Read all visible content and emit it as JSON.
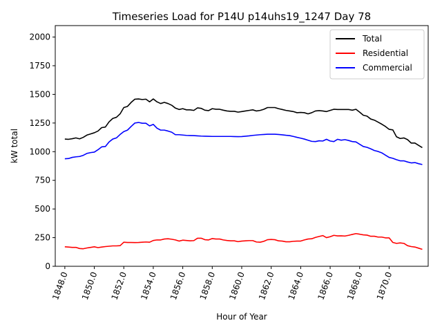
{
  "chart_data": {
    "type": "line",
    "title": "Timeseries Load for P14U p14uhs19_1247  Day 78",
    "xlabel": "Hour of Year",
    "ylabel": "kW total",
    "xlim": [
      1847.35,
      1872.65
    ],
    "ylim": [
      0,
      2100
    ],
    "xticks": [
      1848,
      1850,
      1852,
      1854,
      1856,
      1858,
      1860,
      1862,
      1864,
      1866,
      1868,
      1870
    ],
    "xtick_labels": [
      "1848.0",
      "1850.0",
      "1852.0",
      "1854.0",
      "1856.0",
      "1858.0",
      "1860.0",
      "1862.0",
      "1864.0",
      "1866.0",
      "1868.0",
      "1870.0"
    ],
    "yticks": [
      0,
      250,
      500,
      750,
      1000,
      1250,
      1500,
      1750,
      2000
    ],
    "ytick_labels": [
      "0",
      "250",
      "500",
      "750",
      "1000",
      "1250",
      "1500",
      "1750",
      "2000"
    ],
    "legend_position": "top-right",
    "x_start": 1848,
    "x_step": 0.25,
    "series": [
      {
        "name": "Total",
        "color": "#000000",
        "values": [
          1110,
          1108,
          1113,
          1120,
          1112,
          1125,
          1145,
          1155,
          1165,
          1180,
          1210,
          1215,
          1260,
          1290,
          1300,
          1330,
          1385,
          1395,
          1430,
          1458,
          1460,
          1455,
          1458,
          1435,
          1460,
          1435,
          1420,
          1430,
          1420,
          1405,
          1380,
          1368,
          1375,
          1365,
          1365,
          1360,
          1382,
          1378,
          1362,
          1358,
          1375,
          1370,
          1370,
          1362,
          1355,
          1352,
          1352,
          1345,
          1350,
          1355,
          1360,
          1365,
          1355,
          1360,
          1370,
          1385,
          1385,
          1385,
          1375,
          1368,
          1360,
          1355,
          1350,
          1340,
          1342,
          1340,
          1330,
          1340,
          1355,
          1358,
          1355,
          1350,
          1360,
          1370,
          1368,
          1368,
          1368,
          1368,
          1362,
          1370,
          1345,
          1318,
          1310,
          1285,
          1275,
          1258,
          1240,
          1220,
          1195,
          1190,
          1130,
          1115,
          1120,
          1105,
          1075,
          1075,
          1055,
          1035
        ]
      },
      {
        "name": "Residential",
        "color": "#ff0000",
        "values": [
          170,
          168,
          165,
          165,
          155,
          153,
          160,
          165,
          170,
          163,
          168,
          172,
          175,
          178,
          178,
          180,
          210,
          208,
          208,
          207,
          208,
          210,
          212,
          210,
          225,
          230,
          230,
          238,
          240,
          236,
          230,
          220,
          228,
          225,
          222,
          224,
          245,
          245,
          232,
          230,
          242,
          238,
          238,
          230,
          225,
          222,
          222,
          215,
          220,
          222,
          224,
          224,
          212,
          210,
          218,
          232,
          234,
          232,
          222,
          220,
          214,
          214,
          218,
          220,
          220,
          230,
          238,
          240,
          252,
          260,
          268,
          250,
          258,
          270,
          265,
          266,
          264,
          270,
          278,
          285,
          280,
          274,
          272,
          262,
          262,
          255,
          255,
          248,
          248,
          208,
          200,
          204,
          200,
          180,
          172,
          168,
          158,
          148
        ]
      },
      {
        "name": "Commercial",
        "color": "#0000ff",
        "values": [
          938,
          940,
          950,
          955,
          958,
          968,
          985,
          992,
          996,
          1017,
          1042,
          1045,
          1085,
          1110,
          1120,
          1150,
          1175,
          1188,
          1220,
          1250,
          1255,
          1248,
          1248,
          1225,
          1238,
          1205,
          1188,
          1188,
          1180,
          1170,
          1148,
          1148,
          1145,
          1142,
          1141,
          1140,
          1138,
          1136,
          1135,
          1134,
          1133,
          1133,
          1133,
          1133,
          1133,
          1133,
          1132,
          1131,
          1132,
          1135,
          1138,
          1142,
          1145,
          1148,
          1150,
          1152,
          1152,
          1152,
          1150,
          1147,
          1143,
          1140,
          1133,
          1125,
          1118,
          1110,
          1100,
          1090,
          1088,
          1095,
          1093,
          1108,
          1093,
          1088,
          1108,
          1100,
          1105,
          1098,
          1088,
          1085,
          1065,
          1045,
          1038,
          1025,
          1010,
          1002,
          990,
          970,
          950,
          942,
          930,
          920,
          920,
          910,
          902,
          905,
          895,
          888
        ]
      }
    ]
  }
}
